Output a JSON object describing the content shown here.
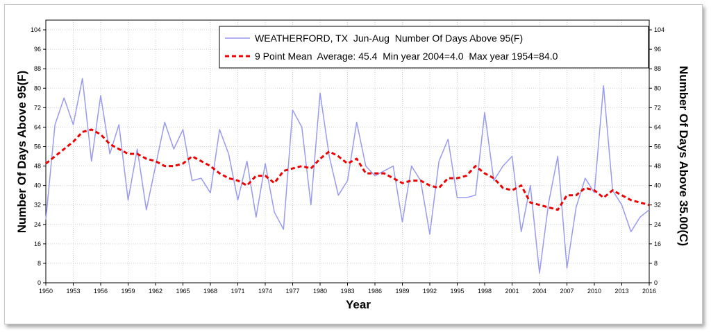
{
  "chart_data": {
    "type": "line",
    "xlabel": "Year",
    "ylabel_left": "Number Of Days Above 95(F)",
    "ylabel_right": "Number Of Days Above 35.00(C)",
    "xlim": [
      1950,
      2016
    ],
    "ylim": [
      0,
      108
    ],
    "x_ticks": [
      "1950",
      "1953",
      "1956",
      "1959",
      "1962",
      "1965",
      "1968",
      "1971",
      "1974",
      "1977",
      "1980",
      "1983",
      "1986",
      "1989",
      "1992",
      "1995",
      "1998",
      "2001",
      "2004",
      "2007",
      "2010",
      "2013",
      "2016"
    ],
    "y_ticks": [
      "0",
      "8",
      "16",
      "24",
      "32",
      "40",
      "48",
      "56",
      "64",
      "72",
      "80",
      "88",
      "96",
      "104"
    ],
    "grid": true,
    "legend_position": "top-right",
    "colors": {
      "series": "#9999ee",
      "mean": "#ee0000"
    },
    "series": [
      {
        "name": "WEATHERFORD, TX  Jun-Aug  Number Of Days Above 95(F)",
        "style": "solid",
        "x": [
          1950,
          1951,
          1952,
          1953,
          1954,
          1955,
          1956,
          1957,
          1958,
          1959,
          1960,
          1961,
          1962,
          1963,
          1964,
          1965,
          1966,
          1967,
          1968,
          1969,
          1970,
          1971,
          1972,
          1973,
          1974,
          1975,
          1976,
          1977,
          1978,
          1979,
          1980,
          1981,
          1982,
          1983,
          1984,
          1985,
          1986,
          1987,
          1988,
          1989,
          1990,
          1991,
          1992,
          1993,
          1994,
          1995,
          1996,
          1997,
          1998,
          1999,
          2000,
          2001,
          2002,
          2003,
          2004,
          2005,
          2006,
          2007,
          2008,
          2009,
          2010,
          2011,
          2012,
          2013,
          2014,
          2015,
          2016
        ],
        "y": [
          26,
          65,
          76,
          65,
          84,
          50,
          77,
          53,
          65,
          34,
          55,
          30,
          48,
          66,
          55,
          63,
          42,
          43,
          37,
          63,
          53,
          34,
          50,
          27,
          49,
          29,
          22,
          71,
          64,
          32,
          78,
          52,
          36,
          42,
          66,
          48,
          44,
          46,
          48,
          25,
          48,
          42,
          20,
          50,
          59,
          35,
          35,
          36,
          70,
          42,
          48,
          52,
          21,
          40,
          4,
          33,
          52,
          6,
          31,
          43,
          37,
          81,
          38,
          32,
          21,
          27,
          30
        ]
      },
      {
        "name": "9 Point Mean  Average: 45.4  Min year 2004=4.0  Max year 1954=84.0",
        "style": "dashed",
        "x": [
          1950,
          1951,
          1952,
          1953,
          1954,
          1955,
          1956,
          1957,
          1958,
          1959,
          1960,
          1961,
          1962,
          1963,
          1964,
          1965,
          1966,
          1967,
          1968,
          1969,
          1970,
          1971,
          1972,
          1973,
          1974,
          1975,
          1976,
          1977,
          1978,
          1979,
          1980,
          1981,
          1982,
          1983,
          1984,
          1985,
          1986,
          1987,
          1988,
          1989,
          1990,
          1991,
          1992,
          1993,
          1994,
          1995,
          1996,
          1997,
          1998,
          1999,
          2000,
          2001,
          2002,
          2003,
          2004,
          2005,
          2006,
          2007,
          2008,
          2009,
          2010,
          2011,
          2012,
          2013,
          2014,
          2015,
          2016
        ],
        "y": [
          49,
          52,
          55,
          58,
          62,
          63,
          61,
          57,
          55,
          53,
          53,
          51,
          50,
          48,
          48,
          49,
          52,
          50,
          48,
          45,
          43,
          42,
          40,
          44,
          44,
          41,
          46,
          47,
          48,
          47,
          51,
          54,
          52,
          49,
          51,
          45,
          45,
          45,
          43,
          41,
          42,
          42,
          40,
          39,
          43,
          43,
          44,
          48,
          45,
          43,
          39,
          38,
          40,
          33,
          32,
          31,
          30,
          36,
          36,
          39,
          38,
          35,
          38,
          36,
          34,
          33,
          32
        ]
      }
    ]
  }
}
